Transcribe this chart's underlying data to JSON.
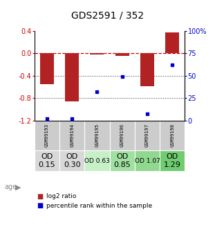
{
  "title": "GDS2591 / 352",
  "samples": [
    "GSM99193",
    "GSM99194",
    "GSM99195",
    "GSM99196",
    "GSM99197",
    "GSM99198"
  ],
  "log2_ratio": [
    -0.55,
    -0.85,
    -0.02,
    -0.05,
    -0.58,
    0.37
  ],
  "percentile_rank": [
    2,
    2,
    32,
    49,
    8,
    62
  ],
  "bar_color": "#b22222",
  "dot_color": "#0000cc",
  "ylim_left": [
    -1.2,
    0.4
  ],
  "ylim_right": [
    0,
    100
  ],
  "yticks_left": [
    0.4,
    0.0,
    -0.4,
    -0.8,
    -1.2
  ],
  "yticks_right": [
    100,
    75,
    50,
    25,
    0
  ],
  "hlines": [
    0.0,
    -0.4,
    -0.8
  ],
  "hline_styles": [
    "dashed",
    "dotted",
    "dotted"
  ],
  "hline_colors": [
    "#cc0000",
    "#333333",
    "#333333"
  ],
  "age_labels": [
    "OD\n0.15",
    "OD\n0.30",
    "OD 0.63",
    "OD\n0.85",
    "OD 1.07",
    "OD\n1.29"
  ],
  "age_colors": [
    "#d8d8d8",
    "#d8d8d8",
    "#c8f0c8",
    "#a0e0a0",
    "#90d890",
    "#70cc70"
  ],
  "age_font_sizes": [
    8,
    8,
    6.5,
    8,
    6.5,
    8
  ],
  "legend_red": "log2 ratio",
  "legend_blue": "percentile rank within the sample",
  "background_color": "#ffffff",
  "plot_bg_color": "#ffffff"
}
